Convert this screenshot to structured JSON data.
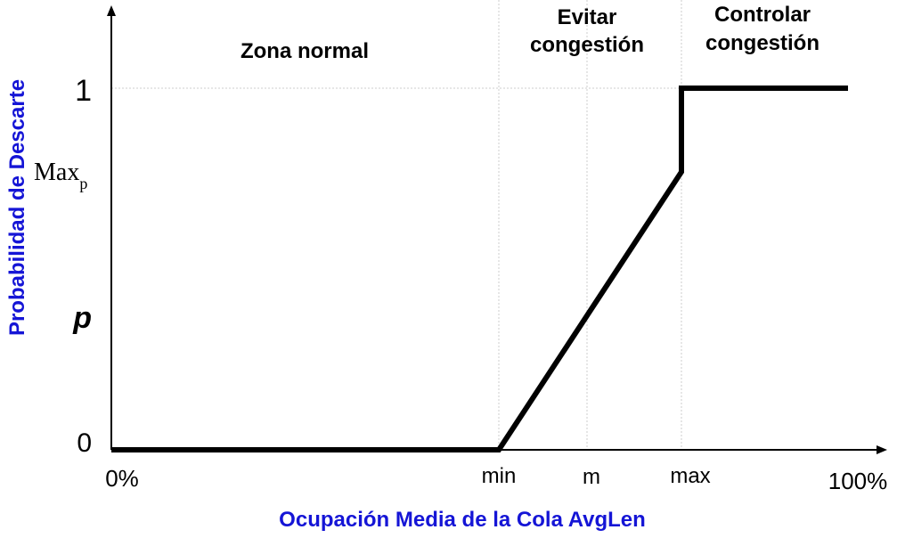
{
  "chart_data": {
    "type": "line",
    "title": "",
    "xlabel": "Ocupación Media de la Cola AvgLen",
    "ylabel": "Probabilidad de Descarte",
    "x_tick_labels": [
      "0%",
      "min",
      "m",
      "max",
      "100%"
    ],
    "y_tick_labels": {
      "zero": "0",
      "p": "p",
      "maxp_base": "Max",
      "maxp_sub": "p",
      "one": "1"
    },
    "zones": [
      {
        "lines": [
          "Zona normal"
        ]
      },
      {
        "lines": [
          "Evitar",
          "congestión"
        ]
      },
      {
        "lines": [
          "Controlar",
          "congestión"
        ]
      }
    ],
    "series": [
      {
        "x": [
          "0%",
          "min",
          "max",
          "max",
          "100%"
        ],
        "y": [
          0,
          0,
          "Max p",
          1,
          1
        ]
      }
    ],
    "colors": {
      "axis_title": "#1515d6",
      "line": "#000000",
      "grid": "#cccccc"
    }
  }
}
